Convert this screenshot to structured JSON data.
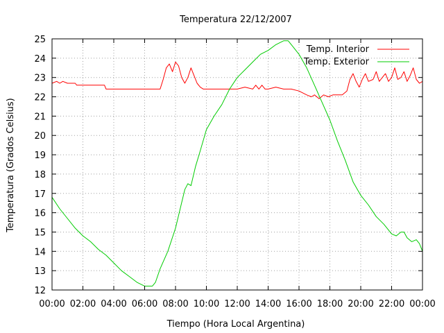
{
  "chart_data": {
    "type": "line",
    "title": "Temperatura 22/12/2007",
    "xlabel": "Tiempo (Hora Local Argentina)",
    "ylabel": "Temperatura (Grados Celsius)",
    "xlim": [
      0,
      24
    ],
    "ylim": [
      12,
      25
    ],
    "x_unit": "hours",
    "x_ticks": [
      "00:00",
      "02:00",
      "04:00",
      "06:00",
      "08:00",
      "10:00",
      "12:00",
      "14:00",
      "16:00",
      "18:00",
      "20:00",
      "22:00",
      "00:00"
    ],
    "y_ticks": [
      "12",
      "13",
      "14",
      "15",
      "16",
      "17",
      "18",
      "19",
      "20",
      "21",
      "22",
      "23",
      "24",
      "25"
    ],
    "grid": true,
    "legend_position": "top-right",
    "series": [
      {
        "name": "Temp. Interior",
        "color": "#ff0000",
        "x": [
          0,
          0.3,
          0.5,
          0.7,
          1.0,
          1.5,
          1.6,
          2.0,
          2.5,
          3.0,
          3.4,
          3.5,
          4.0,
          4.5,
          5.0,
          5.5,
          6.0,
          6.5,
          6.8,
          7.0,
          7.2,
          7.4,
          7.6,
          7.8,
          8.0,
          8.2,
          8.4,
          8.6,
          8.8,
          9.0,
          9.2,
          9.4,
          9.6,
          9.8,
          10.0,
          10.5,
          11.0,
          11.5,
          12.0,
          12.5,
          13.0,
          13.2,
          13.4,
          13.6,
          13.8,
          14.0,
          14.5,
          15.0,
          15.5,
          16.0,
          16.5,
          16.8,
          17.0,
          17.3,
          17.6,
          17.9,
          18.2,
          18.5,
          18.8,
          19.1,
          19.3,
          19.5,
          19.7,
          19.9,
          20.1,
          20.3,
          20.5,
          20.8,
          21.0,
          21.2,
          21.4,
          21.6,
          21.8,
          22.0,
          22.2,
          22.4,
          22.6,
          22.8,
          23.0,
          23.2,
          23.4,
          23.6,
          23.8,
          24.0
        ],
        "values": [
          22.7,
          22.8,
          22.7,
          22.8,
          22.7,
          22.7,
          22.6,
          22.6,
          22.6,
          22.6,
          22.6,
          22.4,
          22.4,
          22.4,
          22.4,
          22.4,
          22.4,
          22.4,
          22.4,
          22.4,
          22.9,
          23.5,
          23.7,
          23.3,
          23.8,
          23.6,
          23.0,
          22.7,
          23.0,
          23.5,
          23.1,
          22.7,
          22.5,
          22.4,
          22.4,
          22.4,
          22.4,
          22.4,
          22.4,
          22.5,
          22.4,
          22.6,
          22.4,
          22.6,
          22.4,
          22.4,
          22.5,
          22.4,
          22.4,
          22.3,
          22.1,
          22.0,
          22.1,
          21.9,
          22.1,
          22.0,
          22.1,
          22.1,
          22.1,
          22.3,
          22.9,
          23.2,
          22.8,
          22.5,
          22.9,
          23.2,
          22.8,
          22.9,
          23.3,
          22.8,
          23.0,
          23.2,
          22.8,
          23.0,
          23.5,
          22.9,
          23.0,
          23.3,
          22.8,
          23.1,
          23.5,
          22.9,
          22.7,
          22.8
        ]
      },
      {
        "name": "Temp. Exterior",
        "color": "#00cc00",
        "x": [
          0,
          0.5,
          1.0,
          1.5,
          2.0,
          2.5,
          3.0,
          3.5,
          4.0,
          4.5,
          5.0,
          5.5,
          6.0,
          6.3,
          6.5,
          6.7,
          7.0,
          7.5,
          8.0,
          8.3,
          8.6,
          8.8,
          9.0,
          9.3,
          9.6,
          10.0,
          10.5,
          11.0,
          11.5,
          12.0,
          12.5,
          13.0,
          13.5,
          14.0,
          14.5,
          15.0,
          15.3,
          15.6,
          16.0,
          16.5,
          17.0,
          17.5,
          18.0,
          18.5,
          19.0,
          19.5,
          20.0,
          20.5,
          21.0,
          21.5,
          22.0,
          22.3,
          22.6,
          22.8,
          23.0,
          23.3,
          23.6,
          23.8,
          24.0
        ],
        "values": [
          16.8,
          16.2,
          15.7,
          15.2,
          14.8,
          14.5,
          14.1,
          13.8,
          13.4,
          13.0,
          12.7,
          12.4,
          12.2,
          12.2,
          12.2,
          12.4,
          13.1,
          14.0,
          15.2,
          16.2,
          17.2,
          17.5,
          17.4,
          18.4,
          19.2,
          20.3,
          21.0,
          21.6,
          22.4,
          23.0,
          23.4,
          23.8,
          24.2,
          24.4,
          24.7,
          24.9,
          24.9,
          24.6,
          24.2,
          23.5,
          22.6,
          21.7,
          20.8,
          19.7,
          18.7,
          17.6,
          16.9,
          16.4,
          15.8,
          15.4,
          14.9,
          14.8,
          15.0,
          15.0,
          14.7,
          14.5,
          14.6,
          14.4,
          14.0
        ]
      }
    ]
  }
}
